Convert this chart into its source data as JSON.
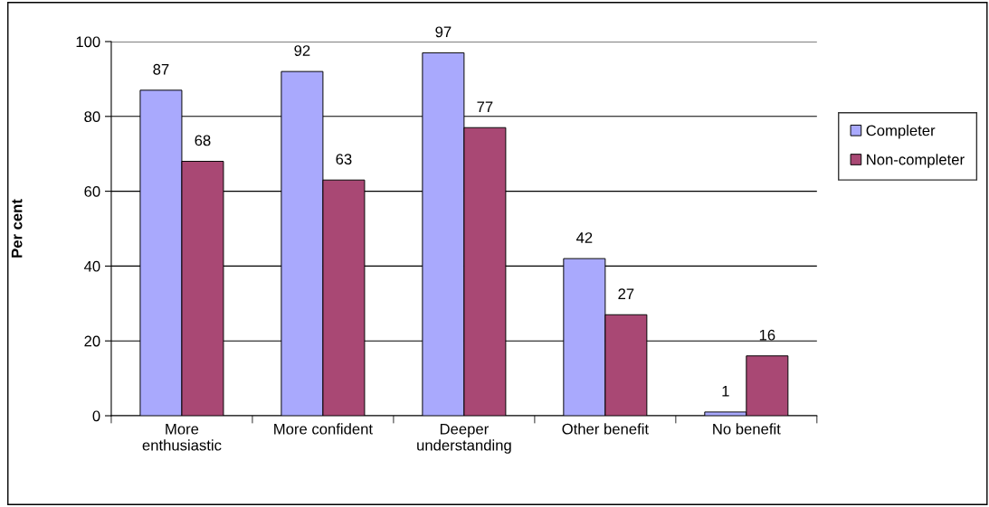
{
  "chart_data": {
    "type": "bar",
    "ylabel": "Per cent",
    "categories": [
      "More\nenthusiastic",
      "More confident",
      "Deeper\nunderstanding",
      "Other benefit",
      "No benefit"
    ],
    "series": [
      {
        "name": "Completer",
        "color": "#a9a9fd",
        "values": [
          87,
          92,
          97,
          42,
          1
        ]
      },
      {
        "name": "Non-completer",
        "color": "#a94874",
        "values": [
          68,
          63,
          77,
          27,
          16
        ]
      }
    ],
    "ylim": [
      0,
      100
    ],
    "yticks": [
      0,
      20,
      40,
      60,
      80,
      100
    ],
    "grid": "y",
    "legend": "right",
    "data_labels": true
  }
}
